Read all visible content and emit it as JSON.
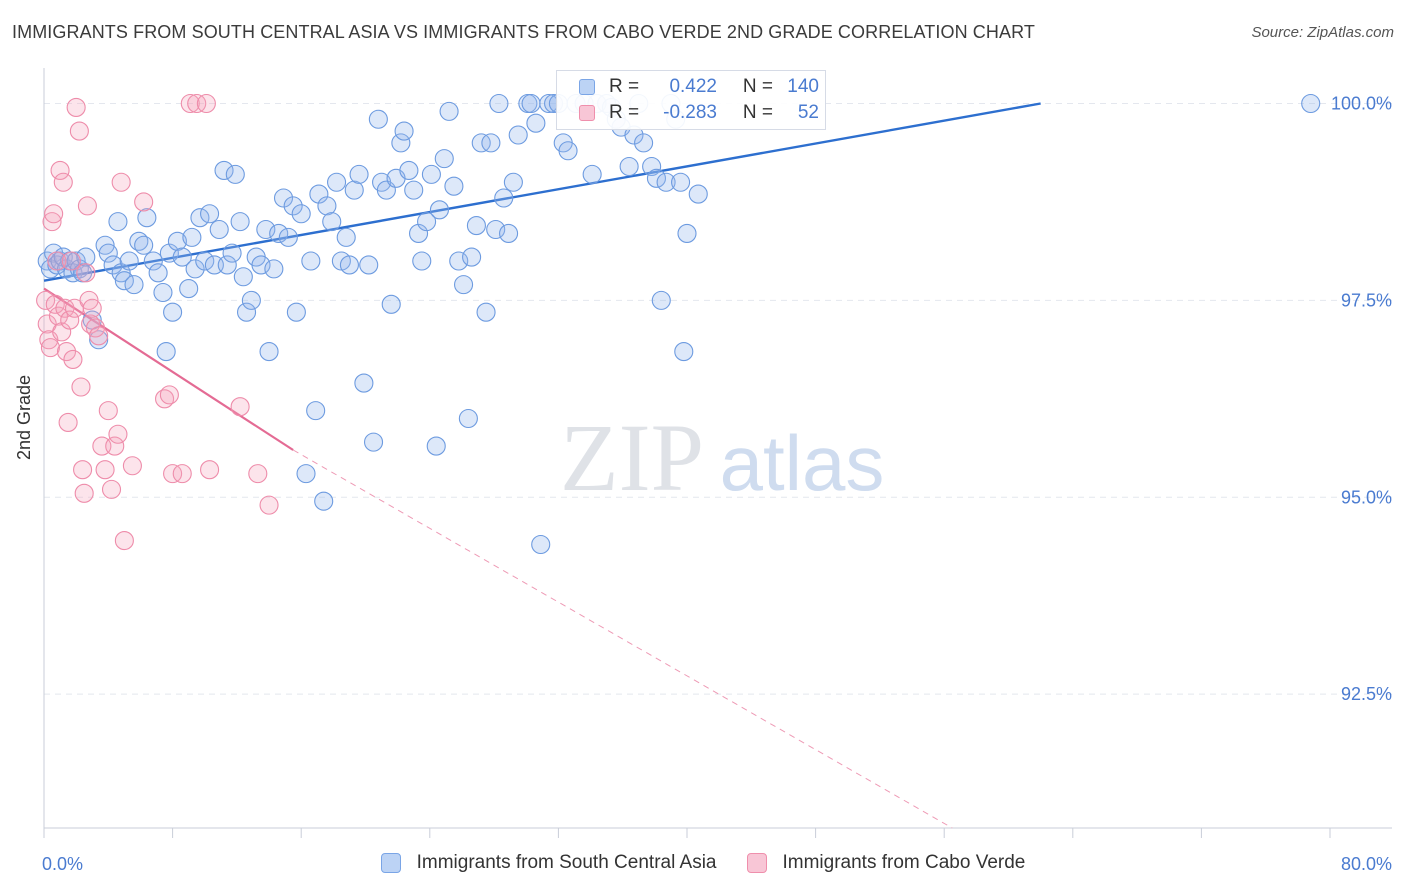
{
  "title": "IMMIGRANTS FROM SOUTH CENTRAL ASIA VS IMMIGRANTS FROM CABO VERDE 2ND GRADE CORRELATION CHART",
  "source": "Source: ZipAtlas.com",
  "watermark": {
    "zip": "ZIP",
    "atlas": "atlas"
  },
  "legend": {
    "r_label": "R =",
    "n_label": "N =",
    "rows": [
      {
        "name": "Immigrants from South Central Asia",
        "r": "0.422",
        "n": "140",
        "color": "#7aa5e6",
        "fill": "#bcd3f5"
      },
      {
        "name": "Immigrants from Cabo Verde",
        "r": "-0.283",
        "n": "52",
        "color": "#ef8fac",
        "fill": "#f8c6d6"
      }
    ]
  },
  "chart_data": {
    "type": "scatter",
    "title": "IMMIGRANTS FROM SOUTH CENTRAL ASIA VS IMMIGRANTS FROM CABO VERDE 2ND GRADE CORRELATION CHART",
    "xlabel": "",
    "ylabel": "2nd Grade",
    "xlim": [
      0,
      80
    ],
    "ylim": [
      90.8,
      100.4
    ],
    "x_tick_labels": [
      "0.0%",
      "80.0%"
    ],
    "y_ticks": [
      92.5,
      95.0,
      97.5,
      100.0
    ],
    "y_tick_labels": [
      "92.5%",
      "95.0%",
      "97.5%",
      "100.0%"
    ],
    "grid": true,
    "legend_position": "top-center",
    "series": [
      {
        "name": "Immigrants from South Central Asia",
        "color": "#6d9be0",
        "trend": {
          "x1": 0,
          "y1": 97.75,
          "x2": 62,
          "y2": 100.0,
          "style": "solid"
        },
        "points": [
          [
            0.2,
            98.0
          ],
          [
            0.4,
            97.9
          ],
          [
            0.6,
            98.1
          ],
          [
            0.8,
            97.95
          ],
          [
            1.0,
            98.0
          ],
          [
            1.2,
            98.05
          ],
          [
            1.4,
            97.9
          ],
          [
            1.6,
            98.0
          ],
          [
            1.8,
            97.85
          ],
          [
            2.0,
            98.0
          ],
          [
            2.2,
            97.9
          ],
          [
            2.4,
            97.85
          ],
          [
            2.6,
            98.05
          ],
          [
            3.0,
            97.25
          ],
          [
            3.4,
            97.0
          ],
          [
            3.8,
            98.2
          ],
          [
            4.0,
            98.1
          ],
          [
            4.3,
            97.95
          ],
          [
            4.6,
            98.5
          ],
          [
            4.8,
            97.85
          ],
          [
            5.0,
            97.75
          ],
          [
            5.3,
            98.0
          ],
          [
            5.6,
            97.7
          ],
          [
            5.9,
            98.25
          ],
          [
            6.2,
            98.2
          ],
          [
            6.4,
            98.55
          ],
          [
            6.8,
            98.0
          ],
          [
            7.1,
            97.85
          ],
          [
            7.4,
            97.6
          ],
          [
            7.6,
            96.85
          ],
          [
            7.8,
            98.1
          ],
          [
            8.0,
            97.35
          ],
          [
            8.3,
            98.25
          ],
          [
            8.6,
            98.05
          ],
          [
            9.0,
            97.65
          ],
          [
            9.2,
            98.3
          ],
          [
            9.4,
            97.9
          ],
          [
            9.7,
            98.55
          ],
          [
            10.0,
            98.0
          ],
          [
            10.3,
            98.6
          ],
          [
            10.6,
            97.95
          ],
          [
            10.9,
            98.4
          ],
          [
            11.2,
            99.15
          ],
          [
            11.4,
            97.95
          ],
          [
            11.7,
            98.1
          ],
          [
            11.9,
            99.1
          ],
          [
            12.2,
            98.5
          ],
          [
            12.4,
            97.8
          ],
          [
            12.6,
            97.35
          ],
          [
            12.9,
            97.5
          ],
          [
            13.2,
            98.05
          ],
          [
            13.5,
            97.95
          ],
          [
            13.8,
            98.4
          ],
          [
            14.0,
            96.85
          ],
          [
            14.3,
            97.9
          ],
          [
            14.6,
            98.35
          ],
          [
            14.9,
            98.8
          ],
          [
            15.2,
            98.3
          ],
          [
            15.5,
            98.7
          ],
          [
            15.7,
            97.35
          ],
          [
            16.0,
            98.6
          ],
          [
            16.3,
            95.3
          ],
          [
            16.6,
            98.0
          ],
          [
            16.9,
            96.1
          ],
          [
            17.1,
            98.85
          ],
          [
            17.4,
            94.95
          ],
          [
            17.6,
            98.7
          ],
          [
            17.9,
            98.5
          ],
          [
            18.2,
            99.0
          ],
          [
            18.5,
            98.0
          ],
          [
            18.8,
            98.3
          ],
          [
            19.0,
            97.95
          ],
          [
            19.3,
            98.9
          ],
          [
            19.6,
            99.1
          ],
          [
            19.9,
            96.45
          ],
          [
            20.2,
            97.95
          ],
          [
            20.5,
            95.7
          ],
          [
            20.8,
            99.8
          ],
          [
            21.0,
            99.0
          ],
          [
            21.3,
            98.9
          ],
          [
            21.6,
            97.45
          ],
          [
            21.9,
            99.05
          ],
          [
            22.2,
            99.5
          ],
          [
            22.4,
            99.65
          ],
          [
            22.7,
            99.15
          ],
          [
            23.0,
            98.9
          ],
          [
            23.3,
            98.35
          ],
          [
            23.5,
            98.0
          ],
          [
            23.8,
            98.5
          ],
          [
            24.1,
            99.1
          ],
          [
            24.4,
            95.65
          ],
          [
            24.6,
            98.65
          ],
          [
            24.9,
            99.3
          ],
          [
            25.2,
            99.9
          ],
          [
            25.5,
            98.95
          ],
          [
            25.8,
            98.0
          ],
          [
            26.1,
            97.7
          ],
          [
            26.4,
            96.0
          ],
          [
            26.6,
            98.05
          ],
          [
            26.9,
            98.45
          ],
          [
            27.2,
            99.5
          ],
          [
            27.5,
            97.35
          ],
          [
            27.8,
            99.5
          ],
          [
            28.1,
            98.4
          ],
          [
            28.3,
            100.0
          ],
          [
            28.6,
            98.8
          ],
          [
            28.9,
            98.35
          ],
          [
            29.2,
            99.0
          ],
          [
            29.5,
            99.6
          ],
          [
            30.1,
            100.0
          ],
          [
            30.3,
            100.0
          ],
          [
            30.6,
            99.75
          ],
          [
            30.9,
            94.4
          ],
          [
            31.4,
            100.0
          ],
          [
            31.7,
            100.0
          ],
          [
            32.0,
            100.0
          ],
          [
            32.3,
            99.5
          ],
          [
            32.6,
            99.4
          ],
          [
            33.1,
            100.0
          ],
          [
            33.6,
            100.0
          ],
          [
            34.1,
            99.1
          ],
          [
            34.4,
            100.0
          ],
          [
            35.0,
            100.0
          ],
          [
            35.3,
            99.95
          ],
          [
            35.6,
            99.8
          ],
          [
            35.9,
            99.7
          ],
          [
            36.4,
            99.2
          ],
          [
            36.7,
            99.6
          ],
          [
            37.0,
            100.0
          ],
          [
            37.3,
            99.5
          ],
          [
            37.8,
            99.2
          ],
          [
            38.1,
            99.05
          ],
          [
            38.4,
            97.5
          ],
          [
            38.7,
            99.0
          ],
          [
            39.0,
            100.0
          ],
          [
            39.3,
            99.8
          ],
          [
            39.6,
            99.0
          ],
          [
            40.0,
            98.35
          ],
          [
            40.7,
            98.85
          ],
          [
            39.8,
            96.85
          ],
          [
            78.8,
            100.0
          ]
        ]
      },
      {
        "name": "Immigrants from Cabo Verde",
        "color": "#ee8caa",
        "trend": {
          "x1": 0,
          "y1": 97.65,
          "x2": 15.5,
          "y2": 95.6,
          "style": "solid",
          "dashed_to": {
            "x": 56.5,
            "y": 90.8
          }
        },
        "points": [
          [
            0.1,
            97.5
          ],
          [
            0.2,
            97.2
          ],
          [
            0.3,
            97.0
          ],
          [
            0.4,
            96.9
          ],
          [
            0.5,
            98.5
          ],
          [
            0.6,
            98.6
          ],
          [
            0.7,
            97.45
          ],
          [
            0.8,
            98.0
          ],
          [
            0.9,
            97.3
          ],
          [
            1.0,
            99.15
          ],
          [
            1.1,
            97.1
          ],
          [
            1.2,
            99.0
          ],
          [
            1.3,
            97.4
          ],
          [
            1.4,
            96.85
          ],
          [
            1.5,
            95.95
          ],
          [
            1.6,
            97.25
          ],
          [
            1.7,
            98.0
          ],
          [
            1.8,
            96.75
          ],
          [
            1.9,
            97.4
          ],
          [
            2.0,
            99.95
          ],
          [
            2.2,
            99.65
          ],
          [
            2.3,
            96.4
          ],
          [
            2.4,
            95.35
          ],
          [
            2.5,
            95.05
          ],
          [
            2.6,
            97.85
          ],
          [
            2.7,
            98.7
          ],
          [
            2.8,
            97.5
          ],
          [
            2.9,
            97.2
          ],
          [
            3.0,
            97.4
          ],
          [
            3.2,
            97.15
          ],
          [
            3.4,
            97.05
          ],
          [
            3.6,
            95.65
          ],
          [
            3.8,
            95.35
          ],
          [
            4.0,
            96.1
          ],
          [
            4.2,
            95.1
          ],
          [
            4.4,
            95.65
          ],
          [
            4.6,
            95.8
          ],
          [
            4.8,
            99.0
          ],
          [
            5.0,
            94.45
          ],
          [
            5.5,
            95.4
          ],
          [
            6.2,
            98.75
          ],
          [
            7.5,
            96.25
          ],
          [
            7.8,
            96.3
          ],
          [
            8.0,
            95.3
          ],
          [
            8.6,
            95.3
          ],
          [
            9.1,
            100.0
          ],
          [
            9.5,
            100.0
          ],
          [
            10.1,
            100.0
          ],
          [
            10.3,
            95.35
          ],
          [
            12.2,
            96.15
          ],
          [
            13.3,
            95.3
          ],
          [
            14.0,
            94.9
          ]
        ]
      }
    ]
  }
}
